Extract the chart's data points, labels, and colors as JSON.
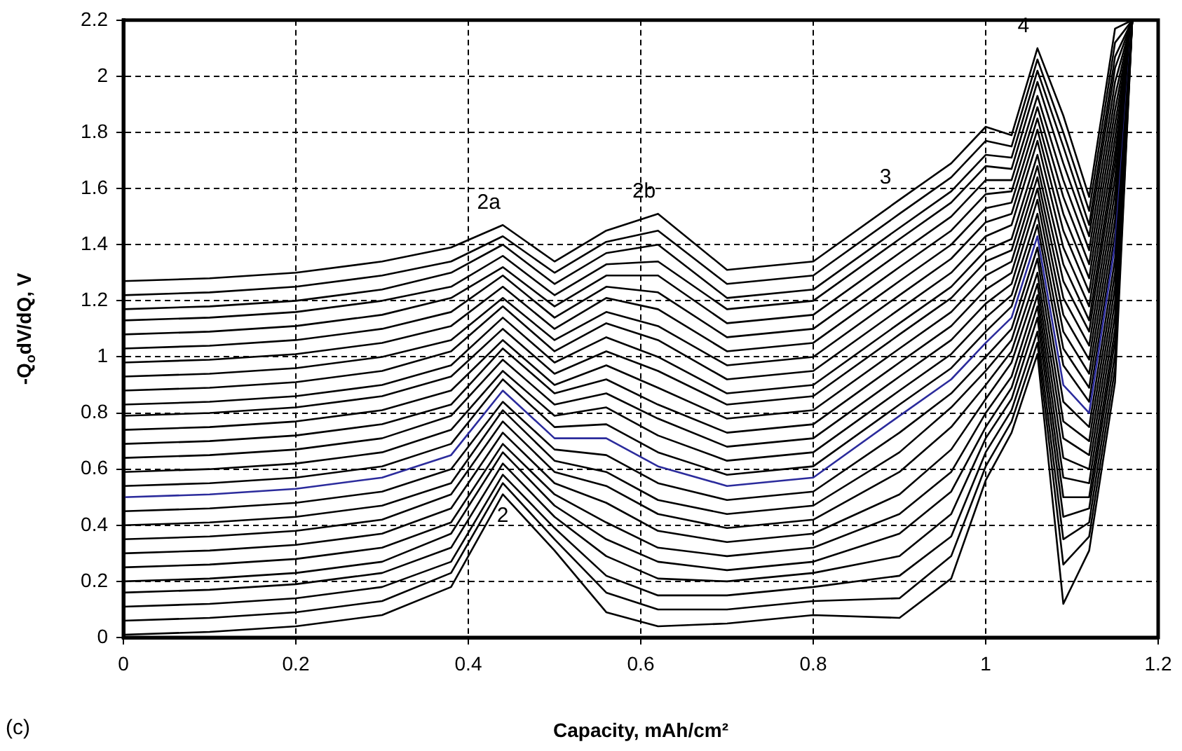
{
  "chart_data": {
    "type": "line",
    "xlabel": "Capacity, mAh/cm²",
    "ylabel": "-Q$_{o}$dV/dQ, V",
    "x": [
      0,
      0.1,
      0.2,
      0.3,
      0.38,
      0.44,
      0.5,
      0.56,
      0.62,
      0.7,
      0.8,
      0.9,
      0.96,
      1.0,
      1.03,
      1.06,
      1.09,
      1.12,
      1.15,
      1.17
    ],
    "xlim": [
      0,
      1.2
    ],
    "xticks": [
      0,
      0.2,
      0.4,
      0.6,
      0.8,
      1,
      1.2
    ],
    "ylim": [
      0,
      2.2
    ],
    "yticks": [
      0,
      0.2,
      0.4,
      0.6,
      0.8,
      1,
      1.2,
      1.4,
      1.6,
      1.8,
      2,
      2.2
    ],
    "grid": true,
    "legend": false,
    "marker": "none",
    "line_style": "solid",
    "annotations": [
      {
        "text": "2a",
        "x": 0.44,
        "y": 1.47
      },
      {
        "text": "2b",
        "x": 0.62,
        "y": 1.51
      },
      {
        "text": "3",
        "x": 0.9,
        "y": 1.56
      },
      {
        "text": "4",
        "x": 1.06,
        "y": 2.1
      },
      {
        "text": "2",
        "x": 0.44,
        "y": 0.51
      },
      "(c)"
    ],
    "series": [
      {
        "color": "#000000",
        "values": [
          0.01,
          0.02,
          0.04,
          0.08,
          0.18,
          0.51,
          0.31,
          0.09,
          0.04,
          0.05,
          0.08,
          0.07,
          0.21,
          0.56,
          0.73,
          1.01,
          0.12,
          0.31,
          0.91,
          2.2
        ]
      },
      {
        "color": "#000000",
        "values": [
          0.06,
          0.07,
          0.09,
          0.13,
          0.23,
          0.55,
          0.35,
          0.16,
          0.1,
          0.1,
          0.13,
          0.14,
          0.29,
          0.61,
          0.77,
          1.05,
          0.26,
          0.36,
          0.96,
          2.2
        ]
      },
      {
        "color": "#000000",
        "values": [
          0.11,
          0.12,
          0.14,
          0.18,
          0.27,
          0.58,
          0.39,
          0.22,
          0.15,
          0.15,
          0.18,
          0.22,
          0.36,
          0.66,
          0.81,
          1.09,
          0.35,
          0.41,
          1.01,
          2.2
        ]
      },
      {
        "color": "#000000",
        "values": [
          0.16,
          0.17,
          0.19,
          0.23,
          0.32,
          0.62,
          0.43,
          0.29,
          0.21,
          0.2,
          0.23,
          0.29,
          0.44,
          0.71,
          0.85,
          1.14,
          0.43,
          0.46,
          1.06,
          2.2
        ]
      },
      {
        "color": "#000000",
        "values": [
          0.2,
          0.21,
          0.23,
          0.27,
          0.37,
          0.66,
          0.47,
          0.35,
          0.27,
          0.24,
          0.27,
          0.37,
          0.52,
          0.75,
          0.89,
          1.18,
          0.5,
          0.5,
          1.1,
          2.2
        ]
      },
      {
        "color": "#000000",
        "values": [
          0.25,
          0.26,
          0.28,
          0.32,
          0.41,
          0.69,
          0.51,
          0.41,
          0.32,
          0.29,
          0.32,
          0.44,
          0.59,
          0.8,
          0.93,
          1.22,
          0.57,
          0.55,
          1.15,
          2.2
        ]
      },
      {
        "color": "#000000",
        "values": [
          0.3,
          0.31,
          0.33,
          0.37,
          0.46,
          0.73,
          0.55,
          0.48,
          0.38,
          0.34,
          0.37,
          0.51,
          0.67,
          0.85,
          0.98,
          1.26,
          0.64,
          0.6,
          1.2,
          2.2
        ]
      },
      {
        "color": "#000000",
        "values": [
          0.35,
          0.36,
          0.38,
          0.42,
          0.51,
          0.77,
          0.59,
          0.54,
          0.44,
          0.39,
          0.42,
          0.59,
          0.75,
          0.9,
          1.02,
          1.3,
          0.71,
          0.65,
          1.25,
          2.2
        ]
      },
      {
        "color": "#000000",
        "values": [
          0.4,
          0.41,
          0.43,
          0.47,
          0.55,
          0.81,
          0.63,
          0.59,
          0.49,
          0.44,
          0.47,
          0.66,
          0.82,
          0.95,
          1.06,
          1.35,
          0.77,
          0.7,
          1.3,
          2.2
        ]
      },
      {
        "color": "#000000",
        "values": [
          0.45,
          0.46,
          0.48,
          0.52,
          0.6,
          0.84,
          0.67,
          0.65,
          0.55,
          0.49,
          0.52,
          0.73,
          0.87,
          1.0,
          1.1,
          1.39,
          0.84,
          0.75,
          1.35,
          2.2
        ]
      },
      {
        "color": "#2b2b9c",
        "values": [
          0.5,
          0.51,
          0.53,
          0.57,
          0.65,
          0.88,
          0.71,
          0.71,
          0.61,
          0.54,
          0.57,
          0.79,
          0.92,
          1.05,
          1.14,
          1.43,
          0.9,
          0.8,
          1.4,
          2.2
        ]
      },
      {
        "color": "#000000",
        "values": [
          0.54,
          0.55,
          0.57,
          0.61,
          0.69,
          0.92,
          0.75,
          0.76,
          0.66,
          0.58,
          0.61,
          0.83,
          0.96,
          1.09,
          1.18,
          1.47,
          0.97,
          0.84,
          1.44,
          2.2
        ]
      },
      {
        "color": "#000000",
        "values": [
          0.59,
          0.6,
          0.62,
          0.66,
          0.74,
          0.95,
          0.79,
          0.82,
          0.72,
          0.63,
          0.66,
          0.88,
          1.01,
          1.14,
          1.22,
          1.51,
          1.03,
          0.89,
          1.49,
          2.2
        ]
      },
      {
        "color": "#000000",
        "values": [
          0.64,
          0.65,
          0.67,
          0.71,
          0.79,
          0.99,
          0.83,
          0.87,
          0.78,
          0.68,
          0.71,
          0.93,
          1.06,
          1.19,
          1.26,
          1.56,
          1.09,
          0.94,
          1.54,
          2.2
        ]
      },
      {
        "color": "#000000",
        "values": [
          0.69,
          0.7,
          0.72,
          0.76,
          0.83,
          1.03,
          0.87,
          0.92,
          0.83,
          0.73,
          0.76,
          0.98,
          1.11,
          1.24,
          1.3,
          1.6,
          1.15,
          0.99,
          1.59,
          2.2
        ]
      },
      {
        "color": "#000000",
        "values": [
          0.74,
          0.75,
          0.77,
          0.81,
          0.88,
          1.06,
          0.9,
          0.97,
          0.89,
          0.78,
          0.81,
          1.03,
          1.16,
          1.29,
          1.34,
          1.64,
          1.21,
          1.04,
          1.64,
          2.2
        ]
      },
      {
        "color": "#000000",
        "values": [
          0.79,
          0.8,
          0.82,
          0.86,
          0.93,
          1.1,
          0.94,
          1.02,
          0.95,
          0.83,
          0.86,
          1.08,
          1.21,
          1.34,
          1.38,
          1.68,
          1.27,
          1.09,
          1.69,
          2.2
        ]
      },
      {
        "color": "#000000",
        "values": [
          0.83,
          0.84,
          0.86,
          0.9,
          0.97,
          1.14,
          0.98,
          1.07,
          1.0,
          0.87,
          0.9,
          1.12,
          1.25,
          1.38,
          1.42,
          1.72,
          1.33,
          1.13,
          1.73,
          2.2
        ]
      },
      {
        "color": "#000000",
        "values": [
          0.88,
          0.89,
          0.91,
          0.95,
          1.02,
          1.18,
          1.02,
          1.12,
          1.06,
          0.92,
          0.95,
          1.17,
          1.3,
          1.43,
          1.47,
          1.77,
          1.39,
          1.18,
          1.78,
          2.2
        ]
      },
      {
        "color": "#000000",
        "values": [
          0.93,
          0.94,
          0.96,
          1.0,
          1.06,
          1.21,
          1.06,
          1.16,
          1.11,
          0.97,
          1.0,
          1.22,
          1.35,
          1.48,
          1.51,
          1.81,
          1.45,
          1.23,
          1.83,
          2.2
        ]
      },
      {
        "color": "#000000",
        "values": [
          0.98,
          0.99,
          1.01,
          1.05,
          1.11,
          1.25,
          1.1,
          1.21,
          1.17,
          1.02,
          1.05,
          1.27,
          1.4,
          1.53,
          1.55,
          1.85,
          1.51,
          1.28,
          1.88,
          2.2
        ]
      },
      {
        "color": "#000000",
        "values": [
          1.03,
          1.04,
          1.06,
          1.1,
          1.16,
          1.29,
          1.14,
          1.25,
          1.23,
          1.07,
          1.1,
          1.32,
          1.45,
          1.58,
          1.59,
          1.89,
          1.57,
          1.33,
          1.93,
          2.2
        ]
      },
      {
        "color": "#000000",
        "values": [
          1.08,
          1.09,
          1.11,
          1.15,
          1.21,
          1.32,
          1.18,
          1.29,
          1.29,
          1.12,
          1.15,
          1.37,
          1.5,
          1.63,
          1.63,
          1.93,
          1.63,
          1.38,
          1.98,
          2.2
        ]
      },
      {
        "color": "#000000",
        "values": [
          1.13,
          1.14,
          1.16,
          1.2,
          1.25,
          1.36,
          1.22,
          1.33,
          1.34,
          1.17,
          1.2,
          1.42,
          1.55,
          1.68,
          1.67,
          1.98,
          1.69,
          1.43,
          2.03,
          2.2
        ]
      },
      {
        "color": "#000000",
        "values": [
          1.17,
          1.18,
          1.2,
          1.24,
          1.3,
          1.4,
          1.26,
          1.37,
          1.4,
          1.21,
          1.24,
          1.46,
          1.59,
          1.72,
          1.71,
          2.02,
          1.75,
          1.47,
          2.07,
          2.2
        ]
      },
      {
        "color": "#000000",
        "values": [
          1.22,
          1.23,
          1.25,
          1.29,
          1.34,
          1.43,
          1.3,
          1.41,
          1.45,
          1.26,
          1.29,
          1.51,
          1.64,
          1.77,
          1.75,
          2.06,
          1.8,
          1.52,
          2.12,
          2.2
        ]
      },
      {
        "color": "#000000",
        "values": [
          1.27,
          1.28,
          1.3,
          1.34,
          1.39,
          1.47,
          1.34,
          1.45,
          1.51,
          1.31,
          1.34,
          1.56,
          1.69,
          1.82,
          1.79,
          2.1,
          1.86,
          1.57,
          2.17,
          2.2
        ]
      }
    ]
  }
}
